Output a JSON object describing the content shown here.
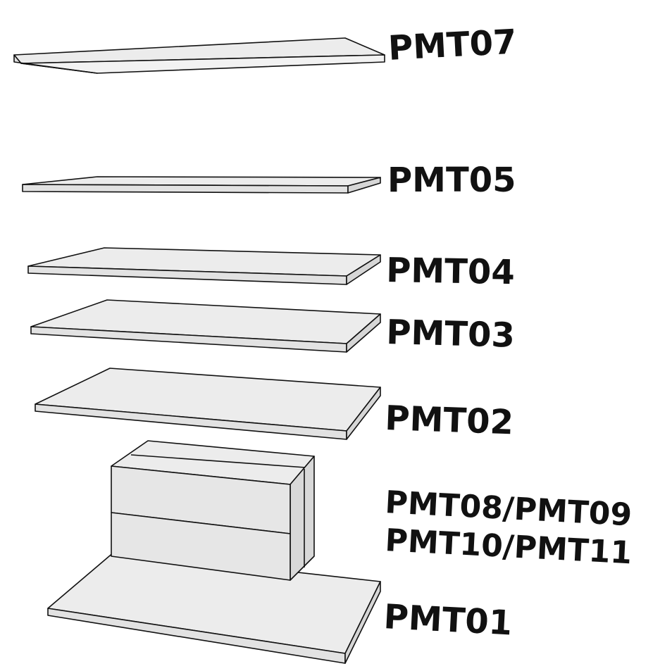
{
  "colors": {
    "face_top": "#ececec",
    "face_side": "#d6d6d6",
    "face_front": "#e4e4e4",
    "edge": "#111111",
    "text": "#111111"
  },
  "layers": [
    {
      "id": "pmt07",
      "label": "PMT07"
    },
    {
      "id": "pmt05",
      "label": "PMT05"
    },
    {
      "id": "pmt04",
      "label": "PMT04"
    },
    {
      "id": "pmt03",
      "label": "PMT03"
    },
    {
      "id": "pmt02",
      "label": "PMT02"
    },
    {
      "id": "pmt08-11",
      "label_line1": "PMT08/PMT09",
      "label_line2": "PMT10/PMT11"
    },
    {
      "id": "pmt01",
      "label": "PMT01"
    }
  ]
}
